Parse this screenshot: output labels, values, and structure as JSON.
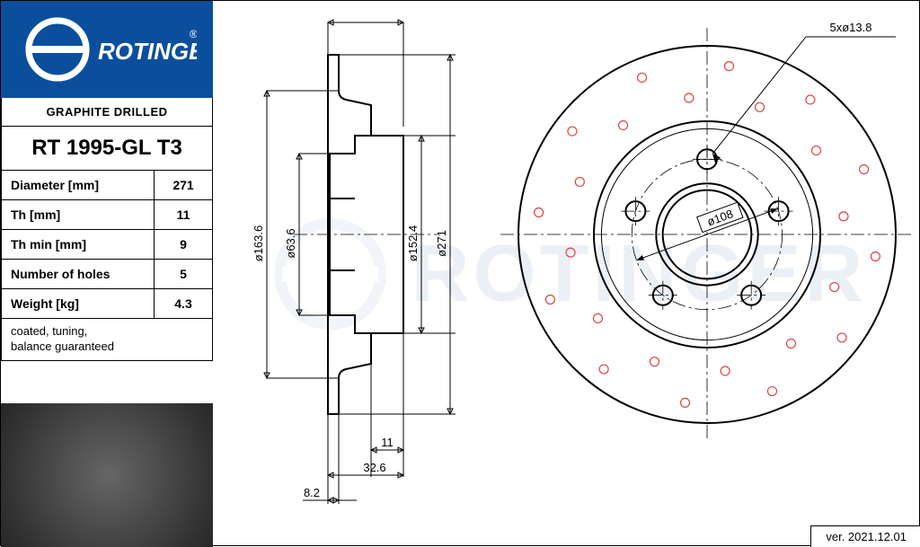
{
  "brand": "ROTINGER",
  "registered": "®",
  "subtitle": "GRAPHITE DRILLED",
  "part_number": "RT 1995-GL T3",
  "specs": [
    {
      "label": "Diameter [mm]",
      "value": "271"
    },
    {
      "label": "Th [mm]",
      "value": "11"
    },
    {
      "label": "Th min [mm]",
      "value": "9"
    },
    {
      "label": "Number of holes",
      "value": "5"
    },
    {
      "label": "Weight [kg]",
      "value": "4.3"
    }
  ],
  "note": "coated, tuning,\nbalance guaranteed",
  "version": "ver. 2021.12.01",
  "diagram": {
    "colors": {
      "brand_blue": "#0b4f9c",
      "line": "#000000",
      "drill_hole": "#d44444",
      "background": "#ffffff"
    },
    "side_view": {
      "dims": {
        "d163_6": "ø163.6",
        "d63_6": "ø63.6",
        "d152_4": "ø152.4",
        "d271": "ø271",
        "w11": "11",
        "w32_6": "32.6",
        "w8_2": "8.2"
      }
    },
    "front_view": {
      "outer_diameter": 271,
      "bolt_circle": 108,
      "center_bore": 63.6,
      "bolt_label": "5xø13.8",
      "bcd_label": "ø108",
      "num_bolts": 5,
      "drill_rings": [
        {
          "radius_ratio": 0.9,
          "count": 12
        },
        {
          "radius_ratio": 0.73,
          "count": 12
        }
      ]
    }
  }
}
